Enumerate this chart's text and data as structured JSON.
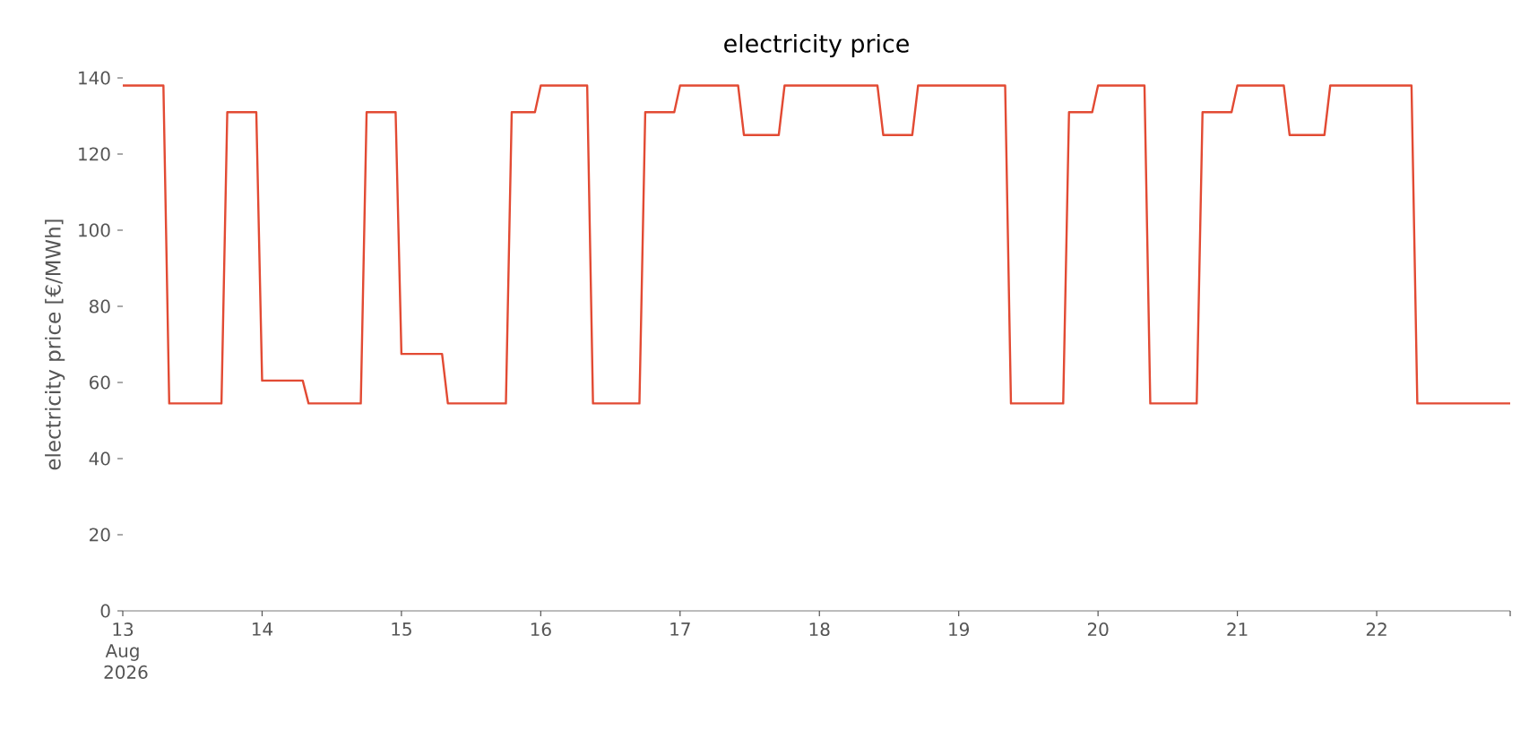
{
  "chart_data": {
    "type": "line",
    "title": "electricity price",
    "ylabel": "electricity price [€/MWh]",
    "color": "#e24a33",
    "x": [
      "2026-08-13T00:00",
      "2026-08-13T07:00",
      "2026-08-13T08:00",
      "2026-08-13T17:00",
      "2026-08-13T18:00",
      "2026-08-13T23:00",
      "2026-08-14T00:00",
      "2026-08-14T07:00",
      "2026-08-14T08:00",
      "2026-08-14T17:00",
      "2026-08-14T18:00",
      "2026-08-14T23:00",
      "2026-08-15T00:00",
      "2026-08-15T07:00",
      "2026-08-15T08:00",
      "2026-08-15T18:00",
      "2026-08-15T19:00",
      "2026-08-15T23:00",
      "2026-08-16T00:00",
      "2026-08-16T08:00",
      "2026-08-16T09:00",
      "2026-08-16T17:00",
      "2026-08-16T18:00",
      "2026-08-16T23:00",
      "2026-08-17T00:00",
      "2026-08-17T10:00",
      "2026-08-17T11:00",
      "2026-08-17T17:00",
      "2026-08-17T18:00",
      "2026-08-18T10:00",
      "2026-08-18T11:00",
      "2026-08-18T16:00",
      "2026-08-18T17:00",
      "2026-08-19T08:00",
      "2026-08-19T09:00",
      "2026-08-19T18:00",
      "2026-08-19T19:00",
      "2026-08-19T23:00",
      "2026-08-20T00:00",
      "2026-08-20T08:00",
      "2026-08-20T09:00",
      "2026-08-20T17:00",
      "2026-08-20T18:00",
      "2026-08-20T23:00",
      "2026-08-21T00:00",
      "2026-08-21T08:00",
      "2026-08-21T09:00",
      "2026-08-21T15:00",
      "2026-08-21T16:00",
      "2026-08-22T06:00",
      "2026-08-22T07:00",
      "2026-08-22T23:00"
    ],
    "values": [
      138,
      138,
      54.5,
      54.5,
      131,
      131,
      60.5,
      60.5,
      54.5,
      54.5,
      131,
      131,
      67.5,
      67.5,
      54.5,
      54.5,
      131,
      131,
      138,
      138,
      54.5,
      54.5,
      131,
      131,
      138,
      138,
      125,
      125,
      138,
      138,
      125,
      125,
      138,
      138,
      54.5,
      54.5,
      131,
      131,
      138,
      138,
      54.5,
      54.5,
      131,
      131,
      138,
      138,
      125,
      125,
      138,
      138,
      54.5,
      54.5
    ],
    "xlim": [
      "2026-08-13T00:00",
      "2026-08-22T23:00"
    ],
    "xticks": [
      {
        "value": "2026-08-13",
        "label": "13 Aug 2026"
      },
      {
        "value": "2026-08-14",
        "label": "14"
      },
      {
        "value": "2026-08-15",
        "label": "15"
      },
      {
        "value": "2026-08-16",
        "label": "16"
      },
      {
        "value": "2026-08-17",
        "label": "17"
      },
      {
        "value": "2026-08-18",
        "label": "18"
      },
      {
        "value": "2026-08-19",
        "label": "19"
      },
      {
        "value": "2026-08-20",
        "label": "20"
      },
      {
        "value": "2026-08-21",
        "label": "21"
      },
      {
        "value": "2026-08-22",
        "label": "22"
      },
      {
        "value": "2026-08-22T23:00",
        "label": null
      }
    ],
    "ylim": [
      0,
      140
    ],
    "yticks": [
      0,
      20,
      40,
      60,
      80,
      100,
      120,
      140
    ]
  }
}
